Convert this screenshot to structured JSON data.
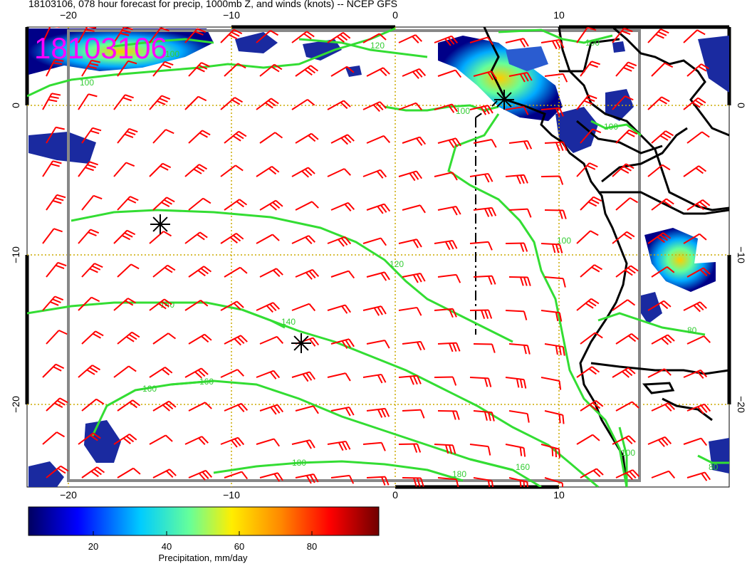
{
  "title": "18103106, 078 hour forecast for precip, 1000mb Z, and winds (knots) -- NCEP GFS",
  "stamp": "18103106",
  "x_ticks": [
    "−20",
    "−10",
    "0",
    "10"
  ],
  "y_ticks": [
    "0",
    "−10",
    "−20"
  ],
  "contours": [
    {
      "label": "100"
    },
    {
      "label": "100"
    },
    {
      "label": "100"
    },
    {
      "label": "100"
    },
    {
      "label": "120"
    },
    {
      "label": "120"
    },
    {
      "label": "140"
    },
    {
      "label": "140"
    },
    {
      "label": "160"
    },
    {
      "label": "160"
    },
    {
      "label": "160"
    },
    {
      "label": "180"
    },
    {
      "label": "180"
    },
    {
      "label": "100"
    },
    {
      "label": "80"
    },
    {
      "label": "80"
    },
    {
      "label": "100"
    },
    {
      "label": "100"
    }
  ],
  "colorbar": {
    "title": "Precipitation, mm/day",
    "ticks": [
      "20",
      "40",
      "60",
      "80"
    ],
    "colors": [
      "#000080",
      "#0000ff",
      "#00ccff",
      "#66ff99",
      "#ffff00",
      "#ff9900",
      "#ff0000",
      "#800000"
    ]
  },
  "colors": {
    "contour": "#33dd33",
    "barb": "#ff0000",
    "coast": "#000000",
    "stamp": "#ff00ff",
    "grid": "#ccaa00"
  }
}
